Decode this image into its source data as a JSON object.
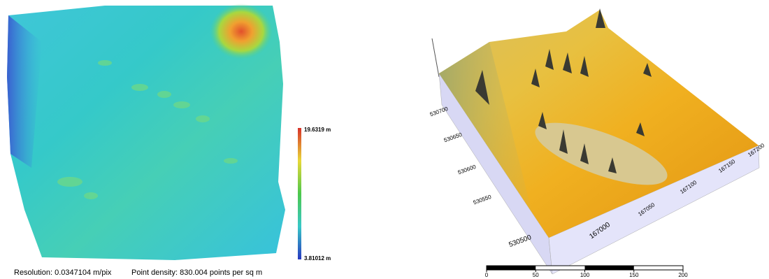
{
  "left_map": {
    "colorbar": {
      "max_label": "19.6319 m",
      "min_label": "3.81012 m"
    },
    "caption": {
      "resolution": "Resolution:  0.0347104 m/pix",
      "density": "Point density:  830.004 points per sq m"
    }
  },
  "right_map": {
    "northing_labels": [
      530700,
      530650,
      530600,
      530550,
      530500
    ],
    "easting_labels": [
      167000,
      167050,
      167100,
      167150,
      167200
    ],
    "scale_bar": {
      "ticks": [
        0,
        50,
        100,
        150,
        200
      ]
    }
  }
}
